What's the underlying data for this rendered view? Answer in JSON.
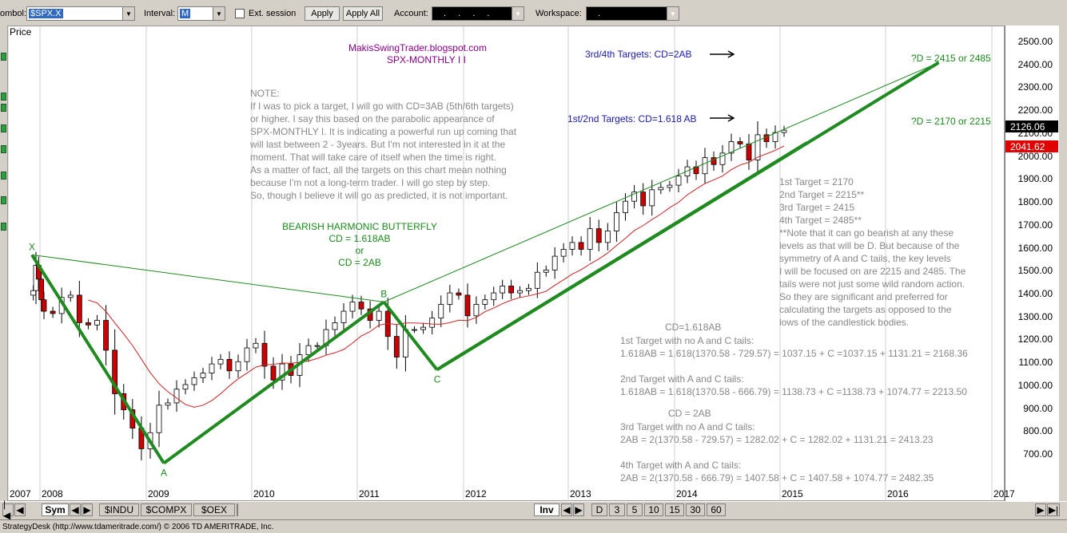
{
  "toolbar": {
    "symbol_label": "ombol:",
    "symbol_value": "$SPX.X",
    "interval_label": "Interval:",
    "interval_value": "M",
    "ext_session_label": "Ext. session",
    "apply_label": "Apply",
    "apply_all_label": "Apply All",
    "account_label": "Account:",
    "account_value": ". . . .",
    "workspace_label": "Workspace:",
    "workspace_value": "."
  },
  "chart_header": {
    "price_label": "Price"
  },
  "chart_data": {
    "type": "candlestick",
    "title": "MakisSwingTrader.blogspot.com",
    "subtitle": "SPX-MONTHLY  I I",
    "ylim": [
      600,
      2600
    ],
    "y_ticks": [
      700,
      800,
      900,
      1000,
      1100,
      1200,
      1300,
      1400,
      1500,
      1600,
      1700,
      1800,
      1900,
      2000,
      2100,
      2200,
      2300,
      2400,
      2500
    ],
    "x_tick_labels": [
      "2007",
      "2008",
      "2009",
      "2010",
      "2011",
      "2012",
      "2013",
      "2014",
      "2015",
      "2016",
      "2017"
    ],
    "last_price": "2126.06",
    "ma_price": "2041.62",
    "pattern_points": [
      {
        "label": "X",
        "date": "2007-10",
        "price": 1576
      },
      {
        "label": "A",
        "date": "2009-03",
        "price": 667
      },
      {
        "label": "B",
        "date": "2011-04",
        "price": 1370.58
      },
      {
        "label": "C",
        "date": "2011-10",
        "price": 1074.77
      },
      {
        "label": "D",
        "date": "2016-07",
        "price": 2415
      }
    ],
    "monthly_closes_approx": [
      1420,
      1530,
      1470,
      1380,
      1330,
      1320,
      1390,
      1400,
      1280,
      1270,
      1290,
      1160,
      970,
      900,
      820,
      730,
      800,
      920,
      930,
      990,
      1010,
      1040,
      1060,
      1100,
      1120,
      1070,
      1110,
      1170,
      1190,
      1090,
      1030,
      1100,
      1050,
      1140,
      1180,
      1180,
      1250,
      1280,
      1330,
      1370,
      1340,
      1290,
      1330,
      1220,
      1130,
      1250,
      1250,
      1260,
      1300,
      1360,
      1410,
      1400,
      1310,
      1360,
      1380,
      1410,
      1440,
      1410,
      1420,
      1430,
      1500,
      1510,
      1570,
      1600,
      1630,
      1600,
      1690,
      1630,
      1680,
      1760,
      1810,
      1850,
      1790,
      1860,
      1870,
      1880,
      1920,
      1960,
      1930,
      2000,
      1970,
      2020,
      2070,
      2060,
      1990,
      2100,
      2070,
      2110,
      2120
    ]
  },
  "annotations": {
    "note_title": "NOTE:",
    "note_lines": [
      "If I was to pick a target, I will go with CD=3AB (5th/6th targets)",
      "or higher. I say this based on the parabolic appearance of",
      "SPX-MONTHLY I. It is indicating a powerful run up coming that",
      "will last between 2 - 3years. But I'm not interested in it at the",
      "moment. That will take care of itself when the time is right.",
      "As a matter of fact, all the targets on this chart mean nothing",
      "because I'm not a long-term trader. I will go step by step.",
      "So, though I believe it will go as predicted, it is not important."
    ],
    "butterfly_lines": [
      "BEARISH HARMONIC BUTTERFLY",
      "CD = 1.618AB",
      "or",
      "CD = 2AB"
    ],
    "targets_34": "3rd/4th Targets: CD=2AB",
    "targets_12": "1st/2nd Targets: CD=1.618 AB",
    "d_upper": "?D = 2415 or 2485",
    "d_lower": "?D = 2170 or 2215",
    "target_list": [
      "1st Target = 2170",
      "2nd Target = 2215**",
      "3rd Target = 2415",
      "4th Target = 2485**",
      "**Note that it can go bearish at any these",
      "levels as that will be D. But because of the",
      "symmetry of A and C tails, the key levels",
      "I will be focused on are 2215 and 2485. The",
      "tails were not just some wild random action.",
      "So they are significant and preferred for",
      "calculating the targets as opposed to the",
      "lows of the candlestick bodies."
    ],
    "calc_head1": "CD=1.618AB",
    "calc_lines1": [
      "1st Target with no A and C tails:",
      "1.618AB = 1.618(1370.58 - 729.57) = 1037.15 + C =1037.15 + 1131.21 = 2168.36",
      "",
      "2nd Target with A and C tails:",
      "1.618AB = 1.618(1370.58 - 666.79) = 1138.73 + C =1138.73 + 1074.77 = 2213.50"
    ],
    "calc_head2": "CD = 2AB",
    "calc_lines2": [
      "3rd Target with no A and C tails:",
      "2AB = 2(1370.58 - 729.57) = 1282.02 + C = 1282.02 + 1131.21 = 2413.23",
      "",
      "4th Target with A and C tails:",
      "2AB = 2(1370.58 - 666.79) = 1407.58 + C = 1407.58 + 1074.77 = 2482.35"
    ]
  },
  "bottombar": {
    "sym_label": "Sym",
    "tabs": [
      "$INDU",
      "$COMPX",
      "$OEX"
    ],
    "inv_label": "Inv",
    "periods": [
      "D",
      "3",
      "5",
      "10",
      "15",
      "30",
      "60"
    ]
  },
  "status": {
    "text": "StrategyDesk (http://www.tdameritrade.com/) © 2006 TD AMERITRADE, Inc."
  },
  "colors": {
    "pattern_green": "#1f8a1f",
    "up_candle": "#ffffff",
    "down_candle": "#cc0000",
    "annotation_gray": "#888888",
    "blue_text": "#1a1aaa",
    "purple_text": "#880088"
  }
}
